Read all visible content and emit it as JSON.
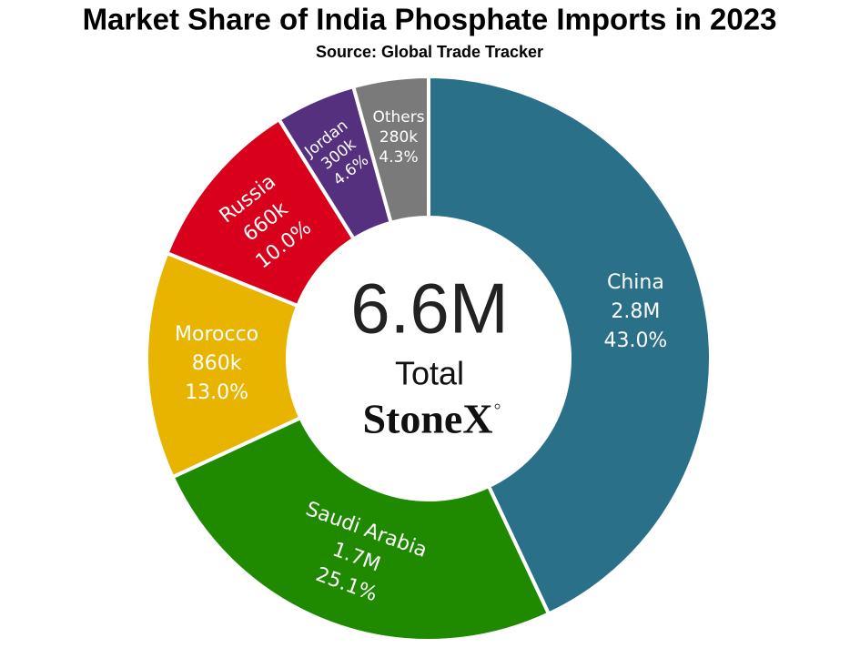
{
  "chart_data": {
    "type": "donut",
    "title": "Market Share of India Phosphate Imports in 2023",
    "subtitle": "Source: Global Trade Tracker",
    "categories": [
      "China",
      "Saudi Arabia",
      "Morocco",
      "Russia",
      "Jordan",
      "Others"
    ],
    "values": [
      43.0,
      25.1,
      13.0,
      10.0,
      4.6,
      4.3
    ],
    "value_labels": [
      "43.0%",
      "25.1%",
      "13.0%",
      "10.0%",
      "4.6%",
      "4.3%"
    ],
    "volumes": [
      2800000,
      1700000,
      860000,
      660000,
      300000,
      280000
    ],
    "volume_labels": [
      "2.8M",
      "1.7M",
      "860k",
      "660k",
      "300k",
      "280k"
    ],
    "colors": [
      "#2a7089",
      "#1f8a00",
      "#e8b400",
      "#d9001b",
      "#55307f",
      "#7a7a7a"
    ],
    "center": {
      "value": 6600000,
      "label": "6.6M",
      "caption": "Total"
    },
    "logo": "StoneX"
  }
}
